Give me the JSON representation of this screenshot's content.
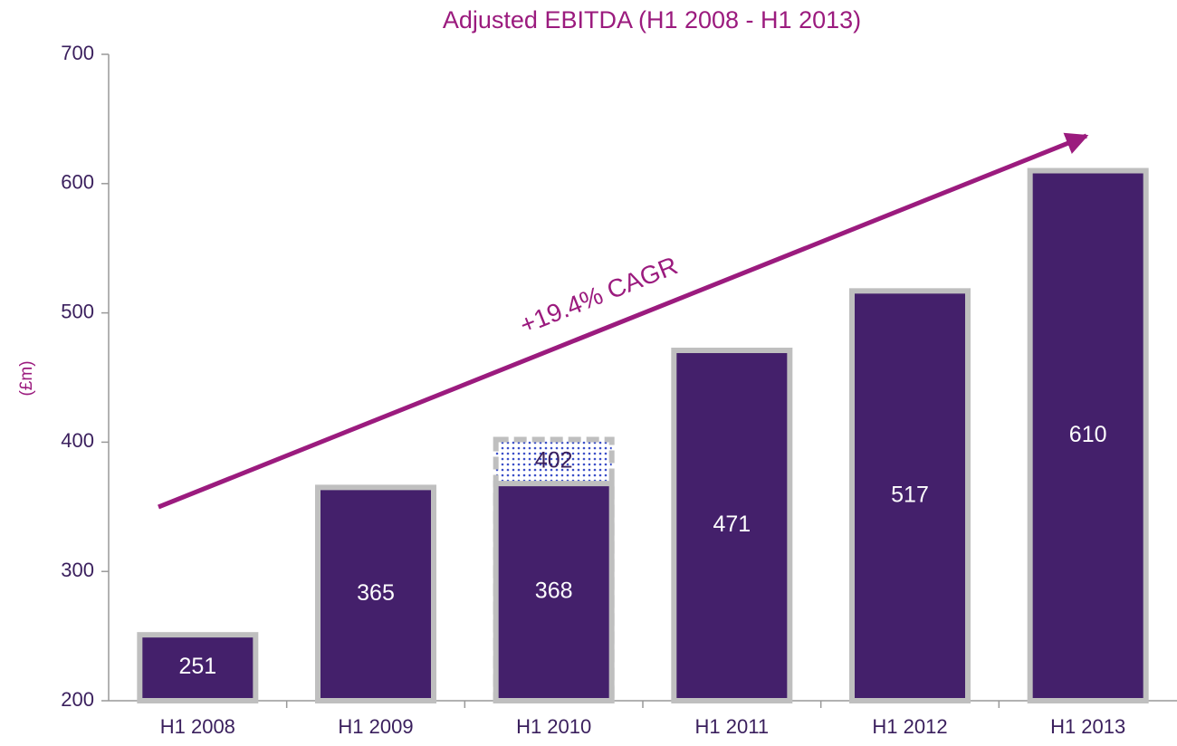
{
  "chart_data": {
    "type": "bar",
    "title": "Adjusted EBITDA (H1 2008 - H1 2013)",
    "y_label": "(£m)",
    "categories": [
      "H1 2008",
      "H1 2009",
      "H1 2010",
      "H1 2011",
      "H1 2012",
      "H1 2013"
    ],
    "series": [
      {
        "color": "#44206b",
        "values": [
          251,
          365,
          368,
          471,
          517,
          610
        ]
      },
      {
        "color": "#3b4fc9",
        "pattern": "dotted",
        "values": [
          null,
          null,
          402,
          null,
          null,
          null
        ]
      }
    ],
    "ylim": [
      200,
      700
    ],
    "yticks": [
      200,
      300,
      400,
      500,
      600,
      700
    ],
    "grid": false,
    "annotations": [
      {
        "text": "+19.4% CAGR"
      }
    ]
  }
}
